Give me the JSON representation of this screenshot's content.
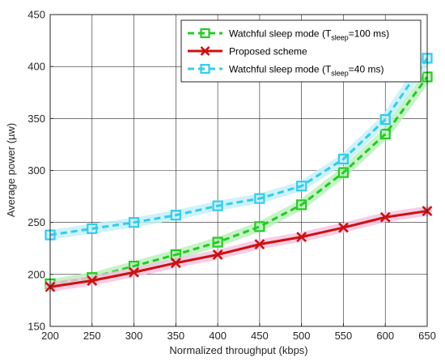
{
  "chart_data": {
    "type": "line",
    "title": "",
    "xlabel": "Normalized throughput (kbps)",
    "ylabel": "Average power (µw)",
    "xlim": [
      200,
      650
    ],
    "ylim": [
      150,
      450
    ],
    "xticks": [
      200,
      250,
      300,
      350,
      400,
      450,
      500,
      550,
      600,
      650
    ],
    "yticks": [
      150,
      200,
      250,
      300,
      350,
      400,
      450
    ],
    "grid": true,
    "legend_position": "top-right",
    "x": [
      200,
      250,
      300,
      350,
      400,
      450,
      500,
      550,
      600,
      650
    ],
    "series": [
      {
        "name_parts": [
          "Watchful sleep mode (T",
          "sleep",
          "=100 ms)"
        ],
        "color": "#22cc22",
        "glow": "#b8f0b8",
        "marker": "square",
        "line_style": "dashed",
        "values": [
          191,
          197,
          208,
          219,
          231,
          246,
          267,
          298,
          335,
          390
        ]
      },
      {
        "name_parts": [
          "Proposed scheme",
          "",
          ""
        ],
        "color": "#cc1111",
        "glow": "#f5c0e0",
        "marker": "x",
        "line_style": "solid",
        "values": [
          188,
          194,
          202,
          211,
          219,
          229,
          236,
          245,
          255,
          261
        ]
      },
      {
        "name_parts": [
          "Watchful sleep mode (T",
          "sleep",
          "=40 ms)"
        ],
        "color": "#33ccee",
        "glow": "#c0f0f8",
        "marker": "square",
        "line_style": "dashed",
        "values": [
          238,
          244,
          250,
          257,
          266,
          273,
          285,
          311,
          349,
          408
        ]
      }
    ]
  }
}
